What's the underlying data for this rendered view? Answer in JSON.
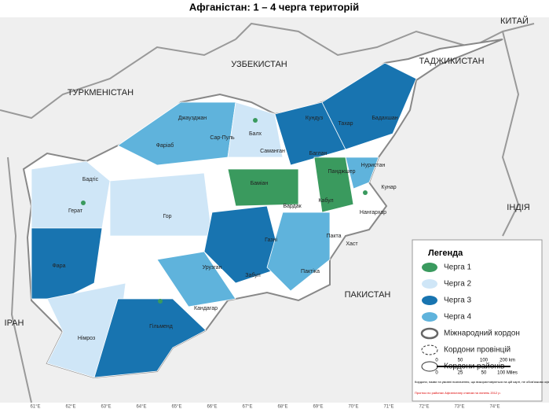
{
  "title": "Афганістан: 1 – 4 черга територій",
  "countries": [
    "КИТАЙ",
    "ТАДЖИКИСТАН",
    "УЗБЕКИСТАН",
    "ТУРКМЕНІСТАН",
    "ІРАН",
    "ПАКИСТАН",
    "ІНДІЯ"
  ],
  "places": [
    "Джаузджан",
    "Балх",
    "Кундуз",
    "Тахар",
    "Бадахшан",
    "Фаріаб",
    "Сар-Пуль",
    "Саманган",
    "Баглан",
    "Бадгіс",
    "Гор",
    "Герат",
    "Баміан",
    "Панджшер",
    "Нуристан",
    "Кунар",
    "Кабул",
    "Вардак",
    "Нангархар",
    "Пакта",
    "Хаст",
    "Пактіка",
    "Газні",
    "Урузган",
    "Забул",
    "Фара",
    "Гільменд",
    "Німроз",
    "Кандагар"
  ],
  "legend": {
    "title": "Легенда",
    "items": [
      {
        "label": "Черга 1",
        "color": "#3a9a5e"
      },
      {
        "label": "Черга 2",
        "color": "#cfe6f7"
      },
      {
        "label": "Черга 3",
        "color": "#1874b0"
      },
      {
        "label": "Черга 4",
        "color": "#5fb3dc"
      },
      {
        "label": "Міжнародний кордон"
      },
      {
        "label": "Кордони провінцій"
      },
      {
        "label": "Кордони районів"
      }
    ]
  },
  "scale": {
    "km": [
      "0",
      "50",
      "100",
      "200 km"
    ],
    "miles": [
      "0",
      "25",
      "50",
      "100 Miles"
    ]
  },
  "longitudes": [
    "61°E",
    "62°E",
    "63°E",
    "64°E",
    "65°E",
    "66°E",
    "67°E",
    "68°E",
    "69°E",
    "70°E",
    "71°E",
    "72°E",
    "73°E",
    "74°E"
  ],
  "notes": [
    "Кордони, назви та умовні позначення, що використовуються на цій карті, не обов'язково офіційно підтримуються ООН",
    "Прогноз по районах Афганістану станом на липень 2012 р."
  ]
}
